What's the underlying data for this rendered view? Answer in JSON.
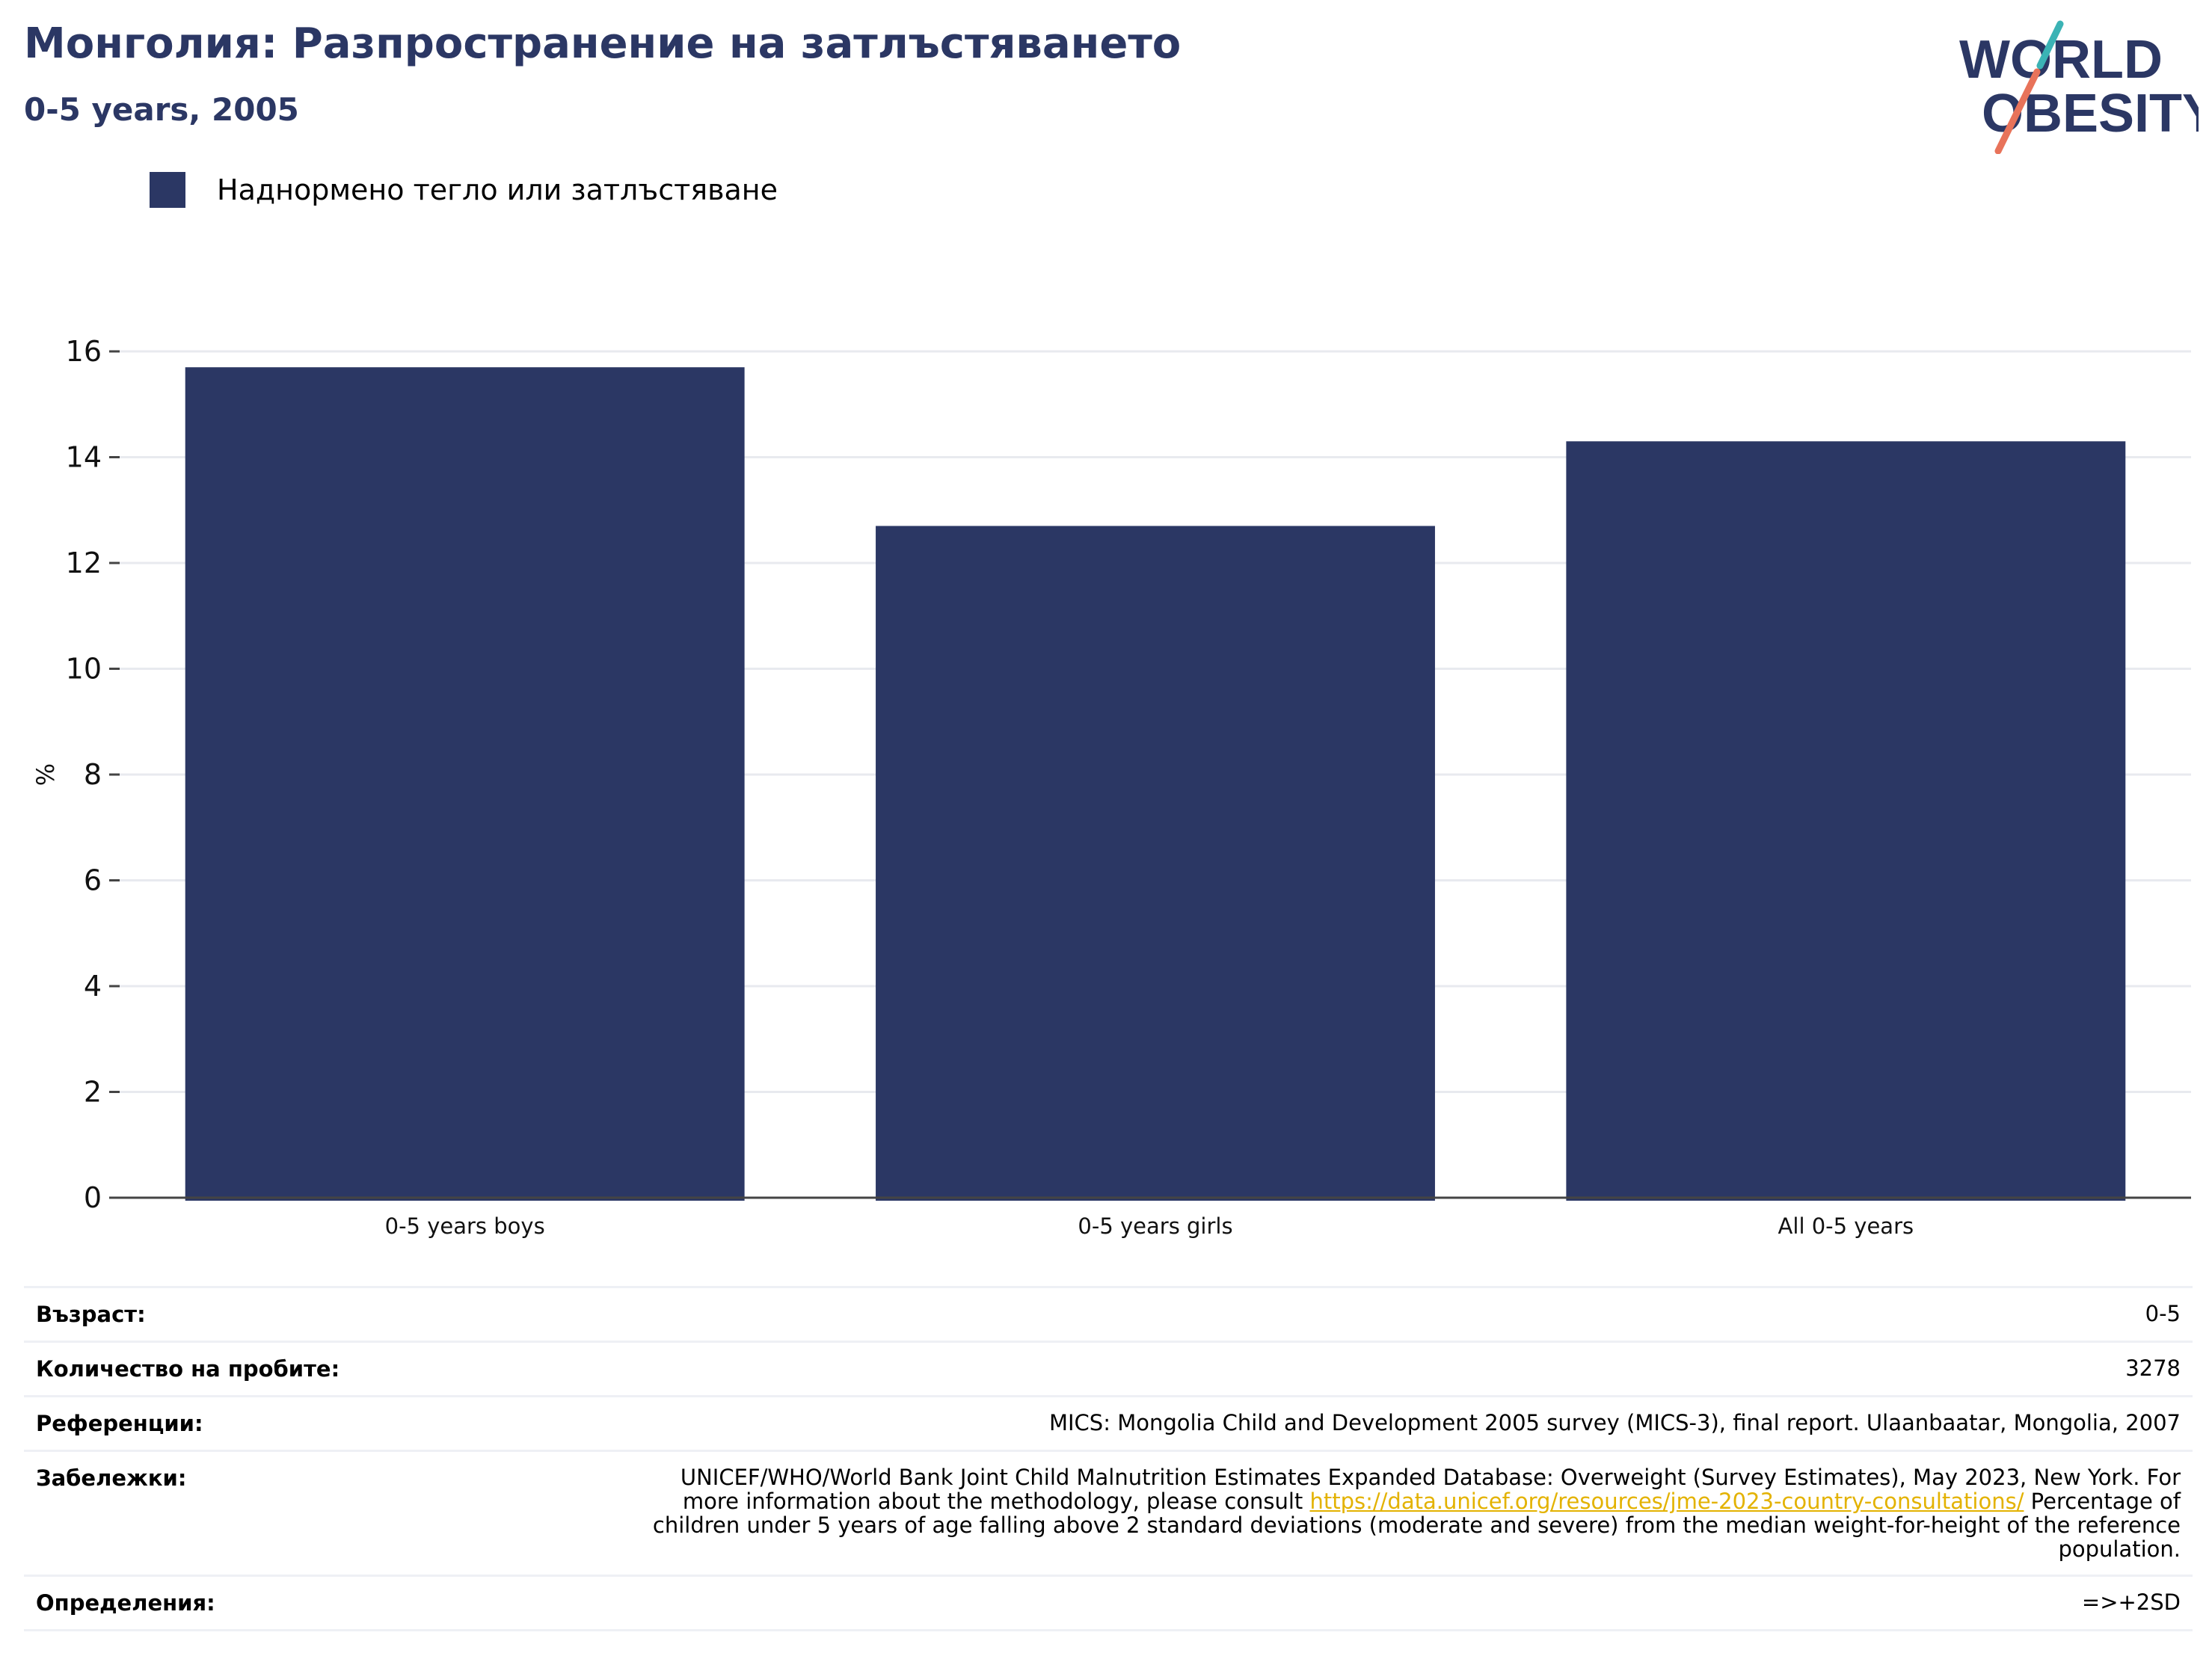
{
  "header": {
    "title": "Монголия: Разпространение на затлъстяването",
    "subtitle": "0-5 years, 2005"
  },
  "logo": {
    "line1": "WORLD",
    "line2": "OBESITY",
    "colors": {
      "text": "#2b3764",
      "slash_top": "#3bb3b5",
      "slash_bottom": "#e8735a"
    }
  },
  "legend": {
    "label": "Наднормено тегло или затлъстяване",
    "color": "#2b3764"
  },
  "chart_data": {
    "type": "bar",
    "categories": [
      "0-5 years boys",
      "0-5 years girls",
      "All 0-5 years"
    ],
    "series": [
      {
        "name": "Наднормено тегло или затлъстяване",
        "values": [
          15.7,
          12.7,
          14.3
        ],
        "color": "#2b3764"
      }
    ],
    "xlabel": "",
    "ylabel": "%",
    "ylim": [
      0,
      16
    ],
    "yticks": [
      0,
      2,
      4,
      6,
      8,
      10,
      12,
      14,
      16
    ],
    "grid": true,
    "legend_position": "top-left"
  },
  "info": {
    "age_label": "Възраст:",
    "age_value": "0-5",
    "sample_label": "Количество на пробите:",
    "sample_value": "3278",
    "refs_label": "Референции:",
    "refs_value": "MICS: Mongolia Child and Development 2005 survey (MICS-3), final report. Ulaanbaatar, Mongolia, 2007",
    "notes_label": "Забележки:",
    "notes_before": "UNICEF/WHO/World Bank Joint Child Malnutrition Estimates Expanded Database: Overweight (Survey Estimates), May 2023, New York. For more information about the methodology, please consult ",
    "notes_link": "https://data.unicef.org/resources/jme-2023-country-consultations/",
    "notes_after": " Percentage of children under 5 years of age falling above 2 standard deviations (moderate and severe) from the median weight-for-height of the reference population.",
    "defs_label": "Определения:",
    "defs_value": "=>+2SD"
  }
}
